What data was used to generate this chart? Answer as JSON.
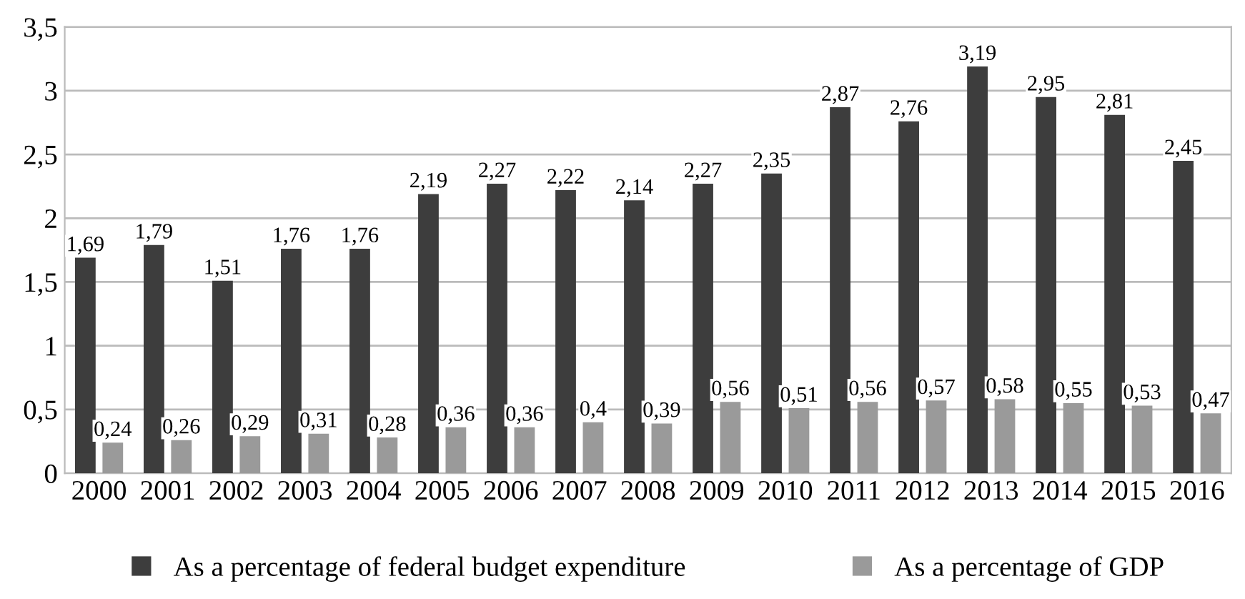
{
  "chart_data": {
    "type": "bar",
    "categories": [
      "2000",
      "2001",
      "2002",
      "2003",
      "2004",
      "2005",
      "2006",
      "2007",
      "2008",
      "2009",
      "2010",
      "2011",
      "2012",
      "2013",
      "2014",
      "2015",
      "2016"
    ],
    "series": [
      {
        "name": "As a percentage of federal budget expenditure",
        "color": "#3d3d3d",
        "values": [
          1.69,
          1.79,
          1.51,
          1.76,
          1.76,
          2.19,
          2.27,
          2.22,
          2.14,
          2.27,
          2.35,
          2.87,
          2.76,
          3.19,
          2.95,
          2.81,
          2.45
        ],
        "value_labels": [
          "1,69",
          "1,79",
          "1,51",
          "1,76",
          "1,76",
          "2,19",
          "2,27",
          "2,22",
          "2,14",
          "2,27",
          "2,35",
          "2,87",
          "2,76",
          "3,19",
          "2,95",
          "2,81",
          "2,45"
        ]
      },
      {
        "name": "As a percentage of GDP",
        "color": "#9a9a9a",
        "values": [
          0.24,
          0.26,
          0.29,
          0.31,
          0.28,
          0.36,
          0.36,
          0.4,
          0.39,
          0.56,
          0.51,
          0.56,
          0.57,
          0.58,
          0.55,
          0.53,
          0.47
        ],
        "value_labels": [
          "0,24",
          "0,26",
          "0,29",
          "0,31",
          "0,28",
          "0,36",
          "0,36",
          "0,4",
          "0,39",
          "0,56",
          "0,51",
          "0,56",
          "0,57",
          "0,58",
          "0,55",
          "0,53",
          "0,47"
        ]
      }
    ],
    "ylim": [
      0,
      3.5
    ],
    "yticks": [
      0,
      {
        "value": 0.5,
        "label": "0,5"
      },
      1,
      {
        "value": 1.5,
        "label": "1,5"
      },
      2,
      {
        "value": 2.5,
        "label": "2,5"
      },
      3,
      {
        "value": 3.5,
        "label": "3,5"
      }
    ],
    "grid": "y",
    "legend": "bottom"
  }
}
